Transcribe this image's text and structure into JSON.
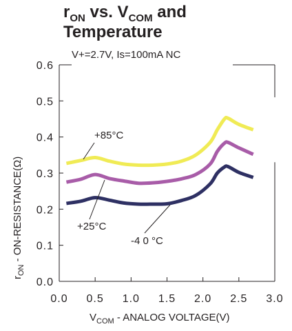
{
  "chart_data": {
    "type": "line",
    "title": {
      "main_prefix": "r",
      "main_sub": "ON",
      "main_mid": " vs. V",
      "main_sub2": "COM",
      "main_suffix": " and",
      "line2": "Temperature"
    },
    "subtitle": "V+=2.7V, Is=100mA NC",
    "xlabel": {
      "prefix": "V",
      "sub": "COM",
      "rest": " - ANALOG VOLTAGE(V)"
    },
    "ylabel": {
      "prefix": "r",
      "sub": "ON",
      "rest": " - ON-RESISTANCE(Ω)"
    },
    "xlim": [
      0,
      3.0
    ],
    "ylim": [
      0,
      0.6
    ],
    "xticks": [
      "0.0",
      "0.5",
      "1.0",
      "1.5",
      "2.0",
      "2.5",
      "3.0"
    ],
    "xtick_values": [
      0,
      0.5,
      1.0,
      1.5,
      2.0,
      2.5,
      3.0
    ],
    "yticks": [
      "0.0",
      "0.1",
      "0.2",
      "0.3",
      "0.4",
      "0.5",
      "0.6"
    ],
    "ytick_values": [
      0,
      0.1,
      0.2,
      0.3,
      0.4,
      0.5,
      0.6
    ],
    "grid": false,
    "series": [
      {
        "name": "+85°C",
        "color": "#f0eb55",
        "x": [
          0.1,
          0.3,
          0.5,
          0.7,
          0.9,
          1.1,
          1.3,
          1.5,
          1.7,
          1.9,
          2.1,
          2.2,
          2.3,
          2.35,
          2.5,
          2.7
        ],
        "y": [
          0.327,
          0.335,
          0.343,
          0.333,
          0.325,
          0.322,
          0.322,
          0.325,
          0.333,
          0.35,
          0.385,
          0.42,
          0.45,
          0.452,
          0.435,
          0.42
        ]
      },
      {
        "name": "+25°C",
        "color": "#a85ca8",
        "x": [
          0.1,
          0.3,
          0.5,
          0.7,
          0.9,
          1.1,
          1.3,
          1.5,
          1.7,
          1.9,
          2.1,
          2.2,
          2.3,
          2.35,
          2.5,
          2.7
        ],
        "y": [
          0.275,
          0.283,
          0.296,
          0.285,
          0.278,
          0.272,
          0.273,
          0.277,
          0.284,
          0.296,
          0.325,
          0.36,
          0.383,
          0.385,
          0.37,
          0.352
        ]
      },
      {
        "name": "-40°C",
        "color": "#2e3063",
        "x": [
          0.1,
          0.3,
          0.5,
          0.7,
          0.9,
          1.1,
          1.3,
          1.5,
          1.7,
          1.9,
          2.1,
          2.2,
          2.3,
          2.35,
          2.5,
          2.7
        ],
        "y": [
          0.216,
          0.222,
          0.232,
          0.225,
          0.217,
          0.214,
          0.214,
          0.215,
          0.224,
          0.238,
          0.27,
          0.3,
          0.317,
          0.318,
          0.302,
          0.288
        ]
      }
    ],
    "annotations": [
      {
        "text": "+85°C",
        "series": "+85°C"
      },
      {
        "text": "+25°C",
        "series": "+25°C"
      },
      {
        "text": "-4 0 °C",
        "series": "-40°C"
      }
    ]
  }
}
